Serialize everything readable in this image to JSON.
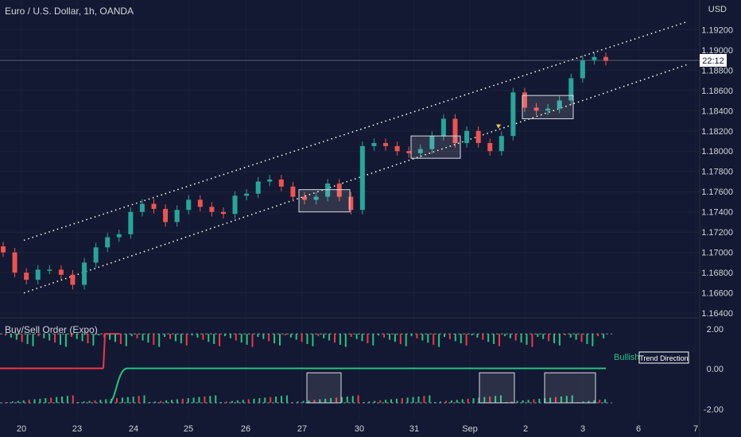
{
  "header": {
    "title": "Euro / U.S. Dollar, 1h, OANDA",
    "currency": "USD",
    "time_badge": "22:12"
  },
  "indicator": {
    "title": "Buy/Sell Order (Expo)",
    "status_label": "Bullish",
    "status_badge": "Trend Direction",
    "y_ticks": [
      "2.00",
      "0.00",
      "-2.00"
    ],
    "bull_color": "#26c281",
    "bear_color": "#f23645"
  },
  "chart_data": [
    {
      "type": "candlestick",
      "title": "Euro / U.S. Dollar, 1h, OANDA",
      "unit": "USD",
      "y_ticks": [
        1.192,
        1.19,
        1.188,
        1.186,
        1.184,
        1.182,
        1.18,
        1.178,
        1.176,
        1.174,
        1.172,
        1.17,
        1.168,
        1.166,
        1.164
      ],
      "y_tick_labels": [
        "1.19200",
        "1.19000",
        "1.18800",
        "1.18600",
        "1.18400",
        "1.18200",
        "1.18000",
        "1.17800",
        "1.17600",
        "1.17400",
        "1.17200",
        "1.17000",
        "1.16800",
        "1.16600",
        "1.16400"
      ],
      "ylim": [
        1.1637,
        1.1932
      ],
      "x_tick_labels": [
        "20",
        "23",
        "24",
        "25",
        "26",
        "27",
        "30",
        "31",
        "Sep",
        "2",
        "3",
        "6",
        "7"
      ],
      "current_price": 1.1896,
      "closes": [
        1.17,
        1.168,
        1.1673,
        1.1683,
        1.1683,
        1.1678,
        1.1668,
        1.169,
        1.1705,
        1.1715,
        1.1718,
        1.174,
        1.1748,
        1.1743,
        1.173,
        1.1742,
        1.1752,
        1.1745,
        1.174,
        1.1738,
        1.1756,
        1.1758,
        1.177,
        1.1772,
        1.1765,
        1.1755,
        1.1752,
        1.1755,
        1.1768,
        1.1755,
        1.1742,
        1.1805,
        1.1808,
        1.1805,
        1.18,
        1.1798,
        1.1802,
        1.1815,
        1.1832,
        1.1808,
        1.182,
        1.1808,
        1.18,
        1.1815,
        1.1858,
        1.1843,
        1.184,
        1.1842,
        1.185,
        1.1872,
        1.189,
        1.1893,
        1.1889
      ],
      "trend_channel": {
        "upper": [
          [
            "20",
            1.1712
          ],
          [
            "6",
            1.1912
          ]
        ],
        "lower": [
          [
            "20",
            1.166
          ],
          [
            "6",
            1.1869
          ]
        ]
      },
      "highlight_boxes": [
        {
          "from": "27",
          "to": "30",
          "low": 1.174,
          "high": 1.1762
        },
        {
          "from": "31",
          "to": "Sep",
          "low": 1.1793,
          "high": 1.1815
        },
        {
          "from": "2",
          "to": "3",
          "low": 1.1832,
          "high": 1.1855
        }
      ],
      "triangle_marker": {
        "near": "Sep",
        "price": 1.1824
      }
    },
    {
      "type": "oscillator",
      "title": "Buy/Sell Order (Expo)",
      "ylim": [
        -2.3,
        2.2
      ],
      "series": [
        {
          "name": "trend_line_red",
          "value": 0.0,
          "until": "23"
        },
        {
          "name": "trend_line_green",
          "value": 0.0,
          "from": "24"
        }
      ],
      "bands": [
        1.55,
        -1.55
      ]
    }
  ]
}
